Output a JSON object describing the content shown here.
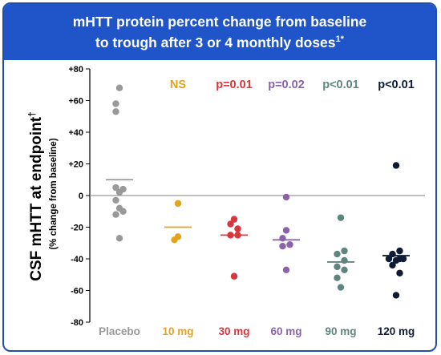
{
  "header": {
    "title_line_1": "mHTT protein percent change from baseline",
    "title_line_2": "to trough after 3 or 4 monthly doses",
    "title_sup": "1*",
    "background": "#1f55c8"
  },
  "chart_data": {
    "type": "scatter",
    "title": "mHTT protein percent change from baseline to trough after 3 or 4 monthly doses",
    "ylabel": "CSF mHTT at endpoint",
    "ylabel_sup": "†",
    "ylabel_sub": "(% change from baseline)",
    "xlabel": "",
    "ylim": [
      -80,
      80
    ],
    "yticks": [
      "+80",
      "+60",
      "+40",
      "+20",
      "0",
      "-20",
      "-40",
      "-60",
      "-80"
    ],
    "ytick_values": [
      80,
      60,
      40,
      20,
      0,
      -20,
      -40,
      -60,
      -80
    ],
    "reference_line": 0,
    "categories": [
      "Placebo",
      "10 mg",
      "30 mg",
      "60 mg",
      "90 mg",
      "120 mg"
    ],
    "series": [
      {
        "name": "Placebo",
        "color": "#999999",
        "significance": "",
        "mean": 10,
        "points": [
          {
            "dx": 0,
            "y": 68
          },
          {
            "dx": -1,
            "y": 58
          },
          {
            "dx": -1,
            "y": 53
          },
          {
            "dx": -1,
            "y": 5
          },
          {
            "dx": 1,
            "y": 4
          },
          {
            "dx": 0,
            "y": 2
          },
          {
            "dx": -1,
            "y": -3
          },
          {
            "dx": 0,
            "y": -8
          },
          {
            "dx": 1,
            "y": -10
          },
          {
            "dx": -1,
            "y": -12
          },
          {
            "dx": 0,
            "y": -27
          }
        ]
      },
      {
        "name": "10 mg",
        "color": "#e3a31e",
        "significance": "NS",
        "mean": -20,
        "points": [
          {
            "dx": 0,
            "y": -5
          },
          {
            "dx": 0,
            "y": -26
          },
          {
            "dx": -1,
            "y": -28
          }
        ]
      },
      {
        "name": "30 mg",
        "color": "#d8353c",
        "significance": "p=0.01",
        "mean": -25,
        "points": [
          {
            "dx": 0,
            "y": -15
          },
          {
            "dx": -1,
            "y": -18
          },
          {
            "dx": 1,
            "y": -21
          },
          {
            "dx": -1,
            "y": -25
          },
          {
            "dx": 1,
            "y": -25
          },
          {
            "dx": 0,
            "y": -51
          }
        ]
      },
      {
        "name": "60 mg",
        "color": "#8a63a8",
        "significance": "p=0.02",
        "mean": -28,
        "points": [
          {
            "dx": 0,
            "y": -1
          },
          {
            "dx": 0,
            "y": -22
          },
          {
            "dx": -1,
            "y": -27
          },
          {
            "dx": -1,
            "y": -32
          },
          {
            "dx": 1,
            "y": -31
          },
          {
            "dx": 0,
            "y": -47
          }
        ]
      },
      {
        "name": "90 mg",
        "color": "#5f8580",
        "significance": "p<0.01",
        "mean": -42,
        "points": [
          {
            "dx": 0,
            "y": -14
          },
          {
            "dx": 1,
            "y": -35
          },
          {
            "dx": -1,
            "y": -37
          },
          {
            "dx": 1,
            "y": -41
          },
          {
            "dx": -1,
            "y": -45
          },
          {
            "dx": 1,
            "y": -47
          },
          {
            "dx": -1,
            "y": -52
          },
          {
            "dx": 0,
            "y": -58
          }
        ]
      },
      {
        "name": "120 mg",
        "color": "#0e1b35",
        "significance": "p<0.01",
        "mean": -38,
        "points": [
          {
            "dx": 0,
            "y": 19
          },
          {
            "dx": 1,
            "y": -35
          },
          {
            "dx": -1,
            "y": -37
          },
          {
            "dx": -2,
            "y": -40
          },
          {
            "dx": 0,
            "y": -41
          },
          {
            "dx": 1,
            "y": -40
          },
          {
            "dx": 2,
            "y": -40
          },
          {
            "dx": -1,
            "y": -44
          },
          {
            "dx": 1,
            "y": -49
          },
          {
            "dx": 0,
            "y": -63
          }
        ]
      }
    ],
    "axis_color": "#000000",
    "zero_line_color": "#9a9a9a",
    "grid": false
  }
}
